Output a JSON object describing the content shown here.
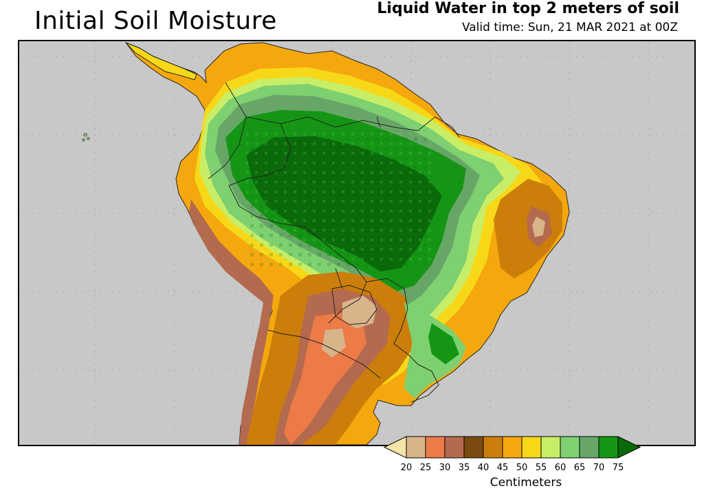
{
  "title": "Initial Soil Moisture",
  "subtitle": "Liquid Water in top 2 meters of soil",
  "valid_time": "Valid time: Sun, 21 MAR 2021 at 00Z",
  "legend": {
    "unit": "Centimeters",
    "ticks": [
      "20",
      "25",
      "30",
      "35",
      "40",
      "45",
      "50",
      "55",
      "60",
      "65",
      "70",
      "75"
    ],
    "colors": {
      "under": "#f5e6a8",
      "bins": [
        "#d8b48a",
        "#ec7b48",
        "#b46a4e",
        "#7a4a10",
        "#cc7e0a",
        "#f5a80e",
        "#f7d818",
        "#c8ee68",
        "#7ed070",
        "#68a668",
        "#149614"
      ],
      "over": "#0a6a0a"
    }
  },
  "map": {
    "background": "#c8c8c8",
    "grid_lines": true,
    "region": "South America"
  }
}
